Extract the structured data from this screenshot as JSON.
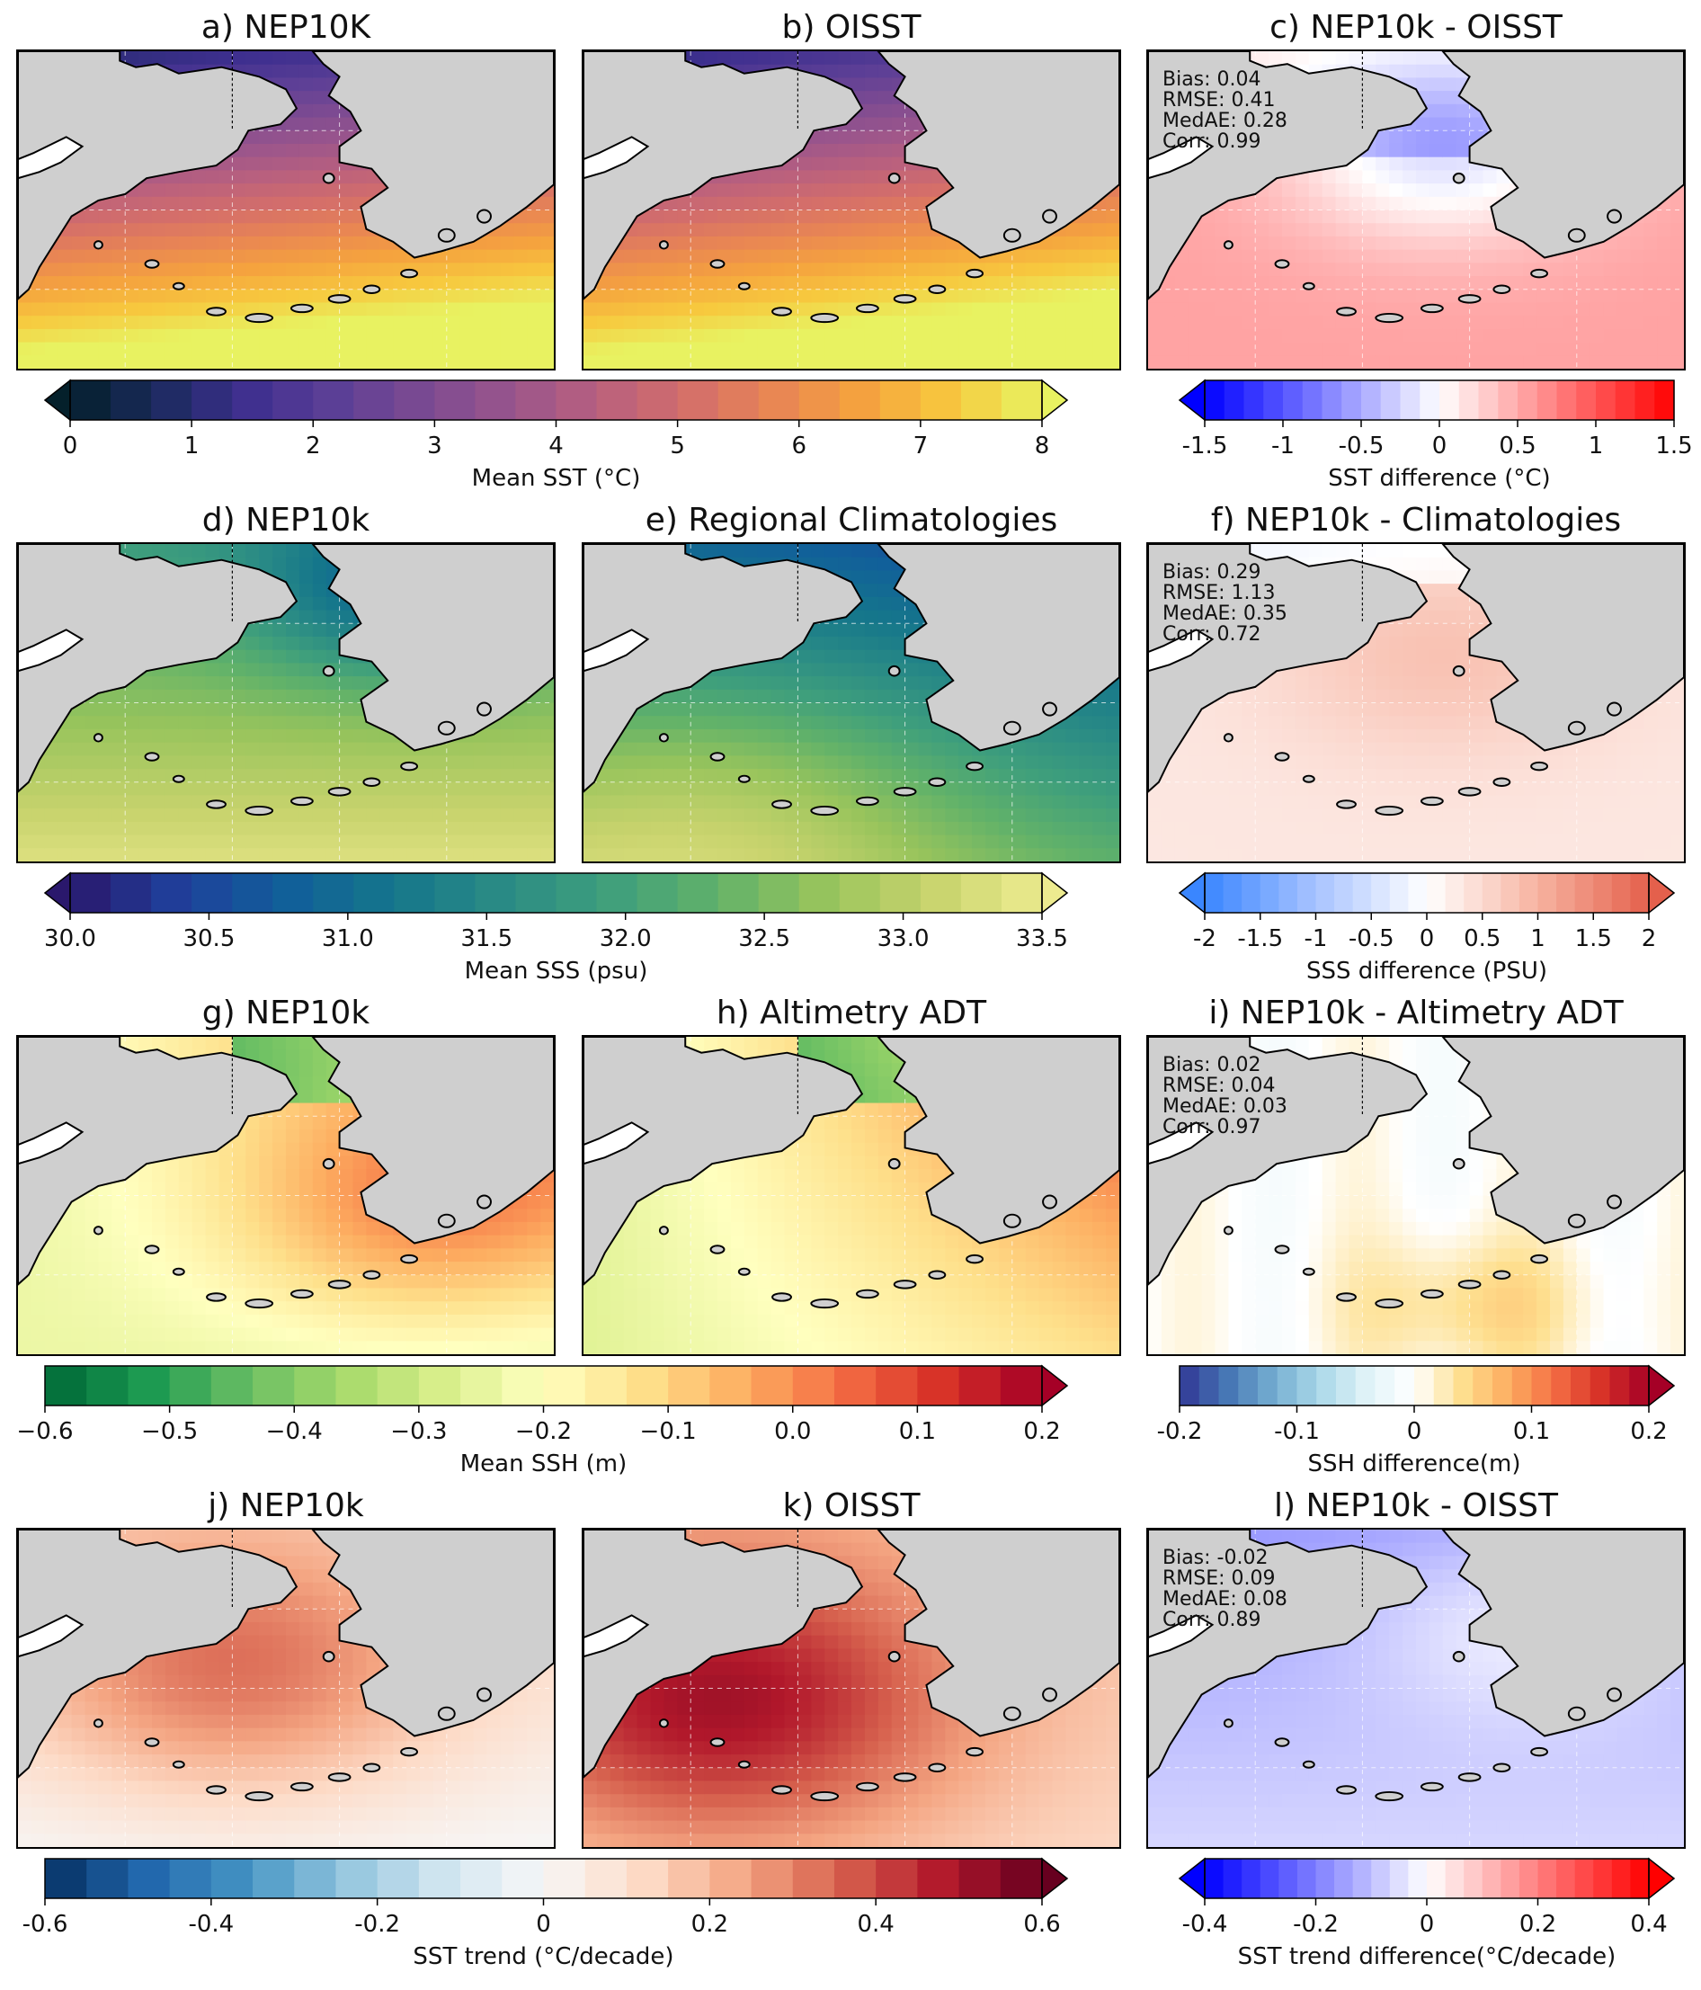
{
  "rows": [
    {
      "panels": [
        {
          "title": "a) NEP10K",
          "field": "sst_model"
        },
        {
          "title": "b) OISST",
          "field": "sst_obs"
        },
        {
          "title": "c) NEP10k - OISST",
          "field": "sst_diff",
          "stats": [
            "Bias: 0.04",
            "RMSE: 0.41",
            "MedAE: 0.28",
            "Corr: 0.99"
          ]
        }
      ],
      "colorbars": [
        {
          "label": "Mean SST (°C)",
          "ticks": [
            "0",
            "1",
            "2",
            "3",
            "4",
            "5",
            "6",
            "7",
            "8"
          ],
          "colormap": "thermal",
          "extend": "both"
        },
        {
          "label": "SST difference (°C)",
          "ticks": [
            "-1.5",
            "-1",
            "-0.5",
            "0",
            "0.5",
            "1",
            "1.5"
          ],
          "colormap": "bwr",
          "extend": "min"
        }
      ]
    },
    {
      "panels": [
        {
          "title": "d) NEP10k",
          "field": "sss_model"
        },
        {
          "title": "e) Regional Climatologies",
          "field": "sss_obs"
        },
        {
          "title": "f) NEP10k - Climatologies",
          "field": "sss_diff",
          "stats": [
            "Bias: 0.29",
            "RMSE: 1.13",
            "MedAE: 0.35",
            "Corr: 0.72"
          ]
        }
      ],
      "colorbars": [
        {
          "label": "Mean SSS (psu)",
          "ticks": [
            "30.0",
            "30.5",
            "31.0",
            "31.5",
            "32.0",
            "32.5",
            "33.0",
            "33.5"
          ],
          "colormap": "haline",
          "extend": "both"
        },
        {
          "label": "SSS difference (PSU)",
          "ticks": [
            "-2",
            "-1.5",
            "-1",
            "-0.5",
            "0",
            "0.5",
            "1",
            "1.5",
            "2"
          ],
          "colormap": "coolwarm",
          "extend": "both"
        }
      ]
    },
    {
      "panels": [
        {
          "title": "g) NEP10k",
          "field": "ssh_model"
        },
        {
          "title": "h) Altimetry ADT",
          "field": "ssh_obs"
        },
        {
          "title": "i) NEP10k - Altimetry ADT",
          "field": "ssh_diff",
          "stats": [
            "Bias: 0.02",
            "RMSE: 0.04",
            "MedAE: 0.03",
            "Corr: 0.97"
          ]
        }
      ],
      "colorbars": [
        {
          "label": "Mean SSH (m)",
          "ticks": [
            "−0.6",
            "−0.5",
            "−0.4",
            "−0.3",
            "−0.2",
            "−0.1",
            "0.0",
            "0.1",
            "0.2"
          ],
          "colormap": "RdYlGn_r",
          "extend": "max"
        },
        {
          "label": "SSH difference(m)",
          "ticks": [
            "-0.2",
            "-0.1",
            "0",
            "0.1",
            "0.2"
          ],
          "colormap": "RdYlBu_r",
          "extend": "max"
        }
      ]
    },
    {
      "panels": [
        {
          "title": "j) NEP10k",
          "field": "trend_model"
        },
        {
          "title": "k) OISST",
          "field": "trend_obs"
        },
        {
          "title": "l) NEP10k - OISST",
          "field": "trend_diff",
          "stats": [
            "Bias: -0.02",
            "RMSE: 0.09",
            "MedAE: 0.08",
            "Corr: 0.89"
          ]
        }
      ],
      "colorbars": [
        {
          "label": "SST trend (°C/decade)",
          "ticks": [
            "-0.6",
            "-0.4",
            "-0.2",
            "0",
            "0.2",
            "0.4",
            "0.6"
          ],
          "colormap": "RdBu_r",
          "extend": "max"
        },
        {
          "label": "SST trend difference(°C/decade)",
          "ticks": [
            "-0.4",
            "-0.2",
            "0",
            "0.2",
            "0.4"
          ],
          "colormap": "bwr",
          "extend": "both"
        }
      ]
    }
  ],
  "colors": {
    "land": "#cfcfcf",
    "frame": "#000000",
    "gridline": "#ffffff"
  }
}
